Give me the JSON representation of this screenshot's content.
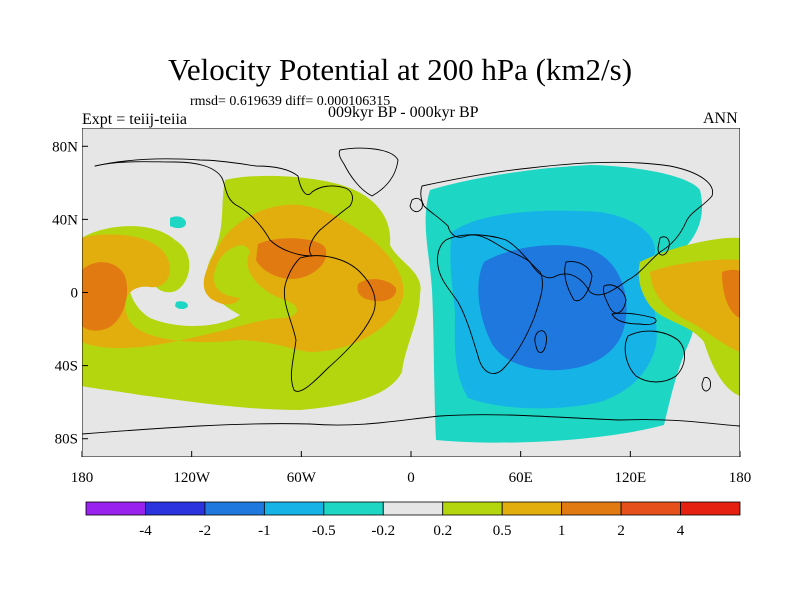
{
  "header": {
    "title": "Velocity Potential at 200 hPa (km2/s)",
    "stats": "rmsd= 0.619639 diff= 0.000106315",
    "expt": "Expt = teiij-teiia",
    "period": "009kyr BP - 000kyr BP",
    "season": "ANN"
  },
  "map": {
    "projection": "cylindrical-equidistant",
    "lon_range": [
      -180,
      180
    ],
    "lat_range": [
      -90,
      90
    ],
    "y_ticks": [
      {
        "label": "80N",
        "lat": 80
      },
      {
        "label": "40N",
        "lat": 40
      },
      {
        "label": "0",
        "lat": 0
      },
      {
        "label": "40S",
        "lat": -40
      },
      {
        "label": "80S",
        "lat": -80
      }
    ],
    "x_ticks": [
      {
        "label": "180",
        "lon": -180
      },
      {
        "label": "120W",
        "lon": -120
      },
      {
        "label": "60W",
        "lon": -60
      },
      {
        "label": "0",
        "lon": 0
      },
      {
        "label": "60E",
        "lon": 60
      },
      {
        "label": "120E",
        "lon": 120
      },
      {
        "label": "180",
        "lon": 180
      }
    ],
    "background_color": "#e6e6e6",
    "coastline_color": "#000000"
  },
  "colorbar": {
    "levels": [
      "-4",
      "-2",
      "-1",
      "-0.5",
      "-0.2",
      "0.2",
      "0.5",
      "1",
      "2",
      "4"
    ],
    "colors": [
      "#9a22ee",
      "#2a33dd",
      "#1e78dd",
      "#16b4e6",
      "#1ed6c4",
      "#e6e6e6",
      "#b4d60e",
      "#e2ae0e",
      "#e27a12",
      "#e6501a",
      "#e62010"
    ]
  }
}
